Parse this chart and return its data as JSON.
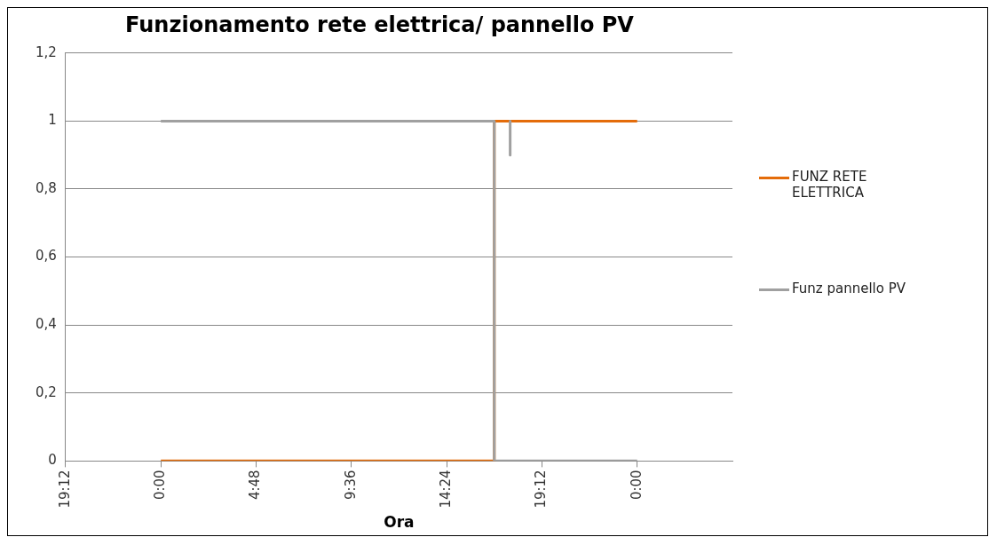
{
  "chart_data": {
    "type": "line",
    "title": "Funzionamento rete elettrica/ pannello PV",
    "xlabel": "Ora",
    "xlim": [
      "--01-01T19:12",
      "--01-03T04:48"
    ],
    "xticks": [
      {
        "value": "--01-01T19:12",
        "label": "19:12"
      },
      {
        "value": "--01-02T00:00",
        "label": "0:00"
      },
      {
        "value": "--01-02T04:48",
        "label": "4:48"
      },
      {
        "value": "--01-02T09:36",
        "label": "9:36"
      },
      {
        "value": "--01-02T14:24",
        "label": "14:24"
      },
      {
        "value": "--01-02T19:12",
        "label": "19:12"
      },
      {
        "value": "--01-03T00:00",
        "label": "0:00"
      }
    ],
    "ylim": [
      0,
      1.2
    ],
    "yticks": [
      {
        "value": 0,
        "label": "0"
      },
      {
        "value": 0.2,
        "label": "0,2"
      },
      {
        "value": 0.4,
        "label": "0,4"
      },
      {
        "value": 0.6,
        "label": "0,6"
      },
      {
        "value": 0.8,
        "label": "0,8"
      },
      {
        "value": 1,
        "label": "1"
      },
      {
        "value": 1.2,
        "label": "1,2"
      }
    ],
    "grid": "y",
    "legend": "right",
    "marker": "none",
    "line_style": "solid",
    "series": [
      {
        "name": "FUNZ RETE ELETTRICA",
        "color": "#e46c0a",
        "x": [
          "--01-02T00:00",
          "--01-02T16:48",
          "--01-02T16:48",
          "--01-03T00:00"
        ],
        "values": [
          0,
          0,
          1,
          1
        ]
      },
      {
        "name": "Funz pannello PV",
        "color": "#a0a0a0",
        "x": [
          "--01-02T00:00",
          "--01-02T16:48",
          "--01-02T16:48",
          "--01-03T00:00"
        ],
        "values": [
          1,
          1,
          0,
          0
        ]
      },
      {
        "color": "#a0a0a0",
        "x": [
          "--01-02T17:36",
          "--01-02T17:36"
        ],
        "values": [
          1,
          0.9
        ]
      }
    ]
  }
}
